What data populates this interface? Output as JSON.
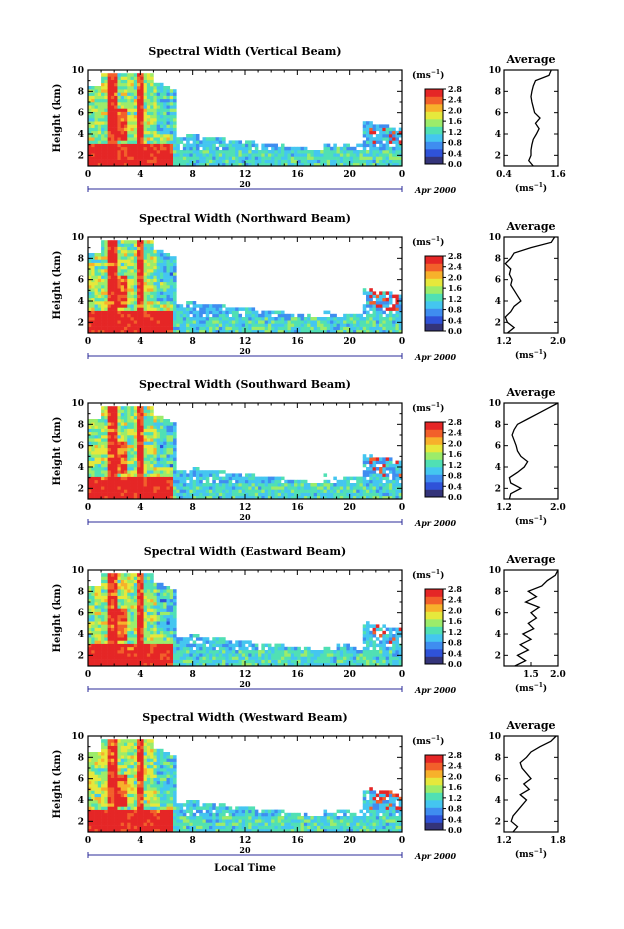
{
  "colors": {
    "colormap": [
      "#34347a",
      "#2f52d8",
      "#3f8df0",
      "#44c6f0",
      "#50e0b4",
      "#9cec6a",
      "#e6e83c",
      "#f7b12b",
      "#f2602a",
      "#e52626"
    ],
    "average_line": "#000000",
    "axis": "#000000",
    "date_axis": "#2b2b9a"
  },
  "chart_data": [
    {
      "type": "heatmap",
      "title": "Spectral Width (Vertical Beam)",
      "ylabel": "Height (km)",
      "x_ticks": [
        "0",
        "4",
        "8",
        "12",
        "16",
        "20",
        "0"
      ],
      "y_ticks": [
        "2",
        "4",
        "6",
        "8",
        "10"
      ],
      "xlim": [
        0,
        24
      ],
      "ylim": [
        1,
        10
      ],
      "date_ticks": [
        "20"
      ],
      "date_label": "Apr 2000",
      "colorbar_label": "(ms",
      "colorbar_ticks": [
        "2.8",
        "2.4",
        "2.0",
        "1.6",
        "1.2",
        "0.8",
        "0.4",
        "0.0"
      ],
      "clim": [
        0.0,
        2.8
      ],
      "average": {
        "title": "Average",
        "xlabel": "(ms",
        "x_ticks": [
          "0.4",
          "1.6"
        ],
        "xlim": [
          0.4,
          1.6
        ],
        "y_ticks": [
          "2",
          "4",
          "6",
          "8",
          "10"
        ],
        "height": [
          1.0,
          1.5,
          2.0,
          2.5,
          3.0,
          3.5,
          4.0,
          4.5,
          5.0,
          5.5,
          6.0,
          6.5,
          7.0,
          7.5,
          8.0,
          8.5,
          9.0,
          9.5,
          10.0
        ],
        "width": [
          1.05,
          0.95,
          1.0,
          1.0,
          1.02,
          1.05,
          1.12,
          1.18,
          1.1,
          1.2,
          1.08,
          1.05,
          1.02,
          1.0,
          1.02,
          1.05,
          1.1,
          1.4,
          1.45
        ]
      }
    },
    {
      "type": "heatmap",
      "title": "Spectral Width (Northward Beam)",
      "ylabel": "Height (km)",
      "x_ticks": [
        "0",
        "4",
        "8",
        "12",
        "16",
        "20",
        "0"
      ],
      "y_ticks": [
        "2",
        "4",
        "6",
        "8",
        "10"
      ],
      "xlim": [
        0,
        24
      ],
      "ylim": [
        1,
        10
      ],
      "date_ticks": [
        "20"
      ],
      "date_label": "Apr 2000",
      "colorbar_label": "(ms",
      "colorbar_ticks": [
        "2.8",
        "2.4",
        "2.0",
        "1.6",
        "1.2",
        "0.8",
        "0.4",
        "0.0"
      ],
      "clim": [
        0.0,
        2.8
      ],
      "average": {
        "title": "Average",
        "xlabel": "(ms",
        "x_ticks": [
          "1.2",
          "2.0"
        ],
        "xlim": [
          1.2,
          2.0
        ],
        "y_ticks": [
          "2",
          "4",
          "6",
          "8",
          "10"
        ],
        "height": [
          1.0,
          1.5,
          2.0,
          2.5,
          3.0,
          3.5,
          4.0,
          4.5,
          5.0,
          5.5,
          6.0,
          6.5,
          7.0,
          7.5,
          8.0,
          8.5,
          9.0,
          9.5,
          10.0
        ],
        "width": [
          1.25,
          1.35,
          1.25,
          1.22,
          1.3,
          1.35,
          1.45,
          1.4,
          1.35,
          1.3,
          1.32,
          1.28,
          1.3,
          1.22,
          1.3,
          1.35,
          1.6,
          1.9,
          1.95
        ]
      }
    },
    {
      "type": "heatmap",
      "title": "Spectral Width (Southward Beam)",
      "ylabel": "Height (km)",
      "x_ticks": [
        "0",
        "4",
        "8",
        "12",
        "16",
        "20",
        "0"
      ],
      "y_ticks": [
        "2",
        "4",
        "6",
        "8",
        "10"
      ],
      "xlim": [
        0,
        24
      ],
      "ylim": [
        1,
        10
      ],
      "date_ticks": [
        "20"
      ],
      "date_label": "Apr 2000",
      "colorbar_label": "(ms",
      "colorbar_ticks": [
        "2.8",
        "2.4",
        "2.0",
        "1.6",
        "1.2",
        "0.8",
        "0.4",
        "0.0"
      ],
      "clim": [
        0.0,
        2.8
      ],
      "average": {
        "title": "Average",
        "xlabel": "(ms",
        "x_ticks": [
          "1.2",
          "2.0"
        ],
        "xlim": [
          1.2,
          2.0
        ],
        "y_ticks": [
          "2",
          "4",
          "6",
          "8",
          "10"
        ],
        "height": [
          1.0,
          1.5,
          2.0,
          2.5,
          3.0,
          3.5,
          4.0,
          4.5,
          5.0,
          5.5,
          6.0,
          6.5,
          7.0,
          7.5,
          8.0,
          8.5,
          9.0,
          9.5,
          10.0
        ],
        "width": [
          1.28,
          1.3,
          1.45,
          1.3,
          1.28,
          1.4,
          1.5,
          1.55,
          1.45,
          1.4,
          1.38,
          1.35,
          1.32,
          1.35,
          1.4,
          1.55,
          1.7,
          1.85,
          2.0
        ]
      }
    },
    {
      "type": "heatmap",
      "title": "Spectral Width (Eastward Beam)",
      "ylabel": "Height (km)",
      "x_ticks": [
        "0",
        "4",
        "8",
        "12",
        "16",
        "20",
        "0"
      ],
      "y_ticks": [
        "2",
        "4",
        "6",
        "8",
        "10"
      ],
      "xlim": [
        0,
        24
      ],
      "ylim": [
        1,
        10
      ],
      "date_ticks": [
        "20"
      ],
      "date_label": "Apr 2000",
      "colorbar_label": "(ms",
      "colorbar_ticks": [
        "2.8",
        "2.4",
        "2.0",
        "1.6",
        "1.2",
        "0.8",
        "0.4",
        "0.0"
      ],
      "clim": [
        0.0,
        2.8
      ],
      "average": {
        "title": "Average",
        "xlabel": "(ms",
        "x_ticks": [
          "1.5",
          "2.0"
        ],
        "xlim": [
          1.0,
          2.0
        ],
        "y_ticks": [
          "2",
          "4",
          "6",
          "8",
          "10"
        ],
        "height": [
          1.0,
          1.5,
          2.0,
          2.5,
          3.0,
          3.5,
          4.0,
          4.5,
          5.0,
          5.5,
          6.0,
          6.5,
          7.0,
          7.5,
          8.0,
          8.5,
          9.0,
          9.5,
          10.0
        ],
        "width": [
          1.2,
          1.4,
          1.25,
          1.45,
          1.3,
          1.5,
          1.35,
          1.55,
          1.45,
          1.6,
          1.5,
          1.65,
          1.4,
          1.6,
          1.45,
          1.7,
          1.8,
          1.95,
          2.0
        ]
      }
    },
    {
      "type": "heatmap",
      "title": "Spectral Width (Westward Beam)",
      "ylabel": "Height (km)",
      "x_ticks": [
        "0",
        "4",
        "8",
        "12",
        "16",
        "20",
        "0"
      ],
      "y_ticks": [
        "2",
        "4",
        "6",
        "8",
        "10"
      ],
      "xlim": [
        0,
        24
      ],
      "ylim": [
        1,
        10
      ],
      "date_ticks": [
        "20"
      ],
      "date_label": "Apr 2000",
      "colorbar_label": "(ms",
      "colorbar_ticks": [
        "2.8",
        "2.4",
        "2.0",
        "1.6",
        "1.2",
        "0.8",
        "0.4",
        "0.0"
      ],
      "clim": [
        0.0,
        2.8
      ],
      "xlabel": "Local Time",
      "average": {
        "title": "Average",
        "xlabel": "(ms",
        "x_ticks": [
          "1.2",
          "1.8"
        ],
        "xlim": [
          1.2,
          1.8
        ],
        "y_ticks": [
          "2",
          "4",
          "6",
          "8",
          "10"
        ],
        "height": [
          1.0,
          1.5,
          2.0,
          2.5,
          3.0,
          3.5,
          4.0,
          4.5,
          5.0,
          5.5,
          6.0,
          6.5,
          7.0,
          7.5,
          8.0,
          8.5,
          9.0,
          9.5,
          10.0
        ],
        "width": [
          1.3,
          1.35,
          1.28,
          1.3,
          1.35,
          1.4,
          1.45,
          1.38,
          1.48,
          1.42,
          1.5,
          1.45,
          1.4,
          1.38,
          1.45,
          1.5,
          1.6,
          1.72,
          1.78
        ]
      }
    }
  ]
}
